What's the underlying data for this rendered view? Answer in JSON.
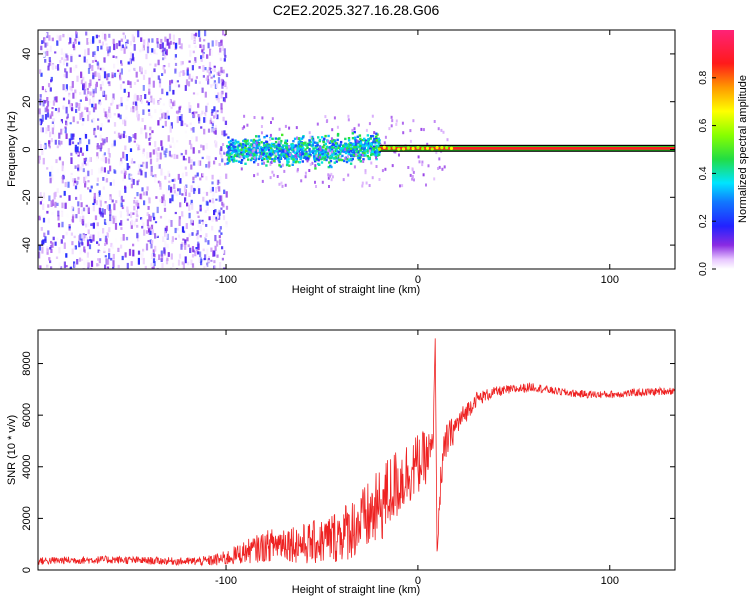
{
  "title": "C2E2.2025.327.16.28.G06",
  "colors": {
    "snr_line": "#ee2222",
    "axis": "#000000",
    "track_red": "#ff2020",
    "track_green": "#22cc22"
  },
  "chart_data": [
    {
      "type": "heatmap",
      "name": "spectrogram",
      "xlabel": "Height of straight line (km)",
      "ylabel": "Frequency (Hz)",
      "xlim": [
        -198,
        134
      ],
      "ylim": [
        -50,
        50
      ],
      "xticks": [
        -100,
        0,
        100
      ],
      "xtick_labels": [
        "-100",
        "0",
        "100"
      ],
      "yticks": [
        -40,
        -20,
        0,
        20,
        40
      ],
      "ytick_labels": [
        "-40",
        "-20",
        "0",
        "20",
        "40"
      ],
      "grid": false,
      "colorbar": {
        "label": "Normalized spectral amplitude",
        "range": [
          0,
          1
        ],
        "ticks": [
          0.0,
          0.2,
          0.4,
          0.6,
          0.8
        ],
        "tick_labels": [
          "0.0",
          "0.2",
          "0.4",
          "0.6",
          "0.8"
        ],
        "colormap": "rainbow (purple-blue-cyan-green-yellow-red-magenta)"
      },
      "regions": [
        {
          "description": "diffuse noise",
          "x_range": [
            -198,
            -100
          ],
          "f_range": [
            -50,
            50
          ],
          "amplitude": [
            0.0,
            0.2
          ]
        },
        {
          "description": "broadened signal",
          "x_range": [
            -100,
            -20
          ],
          "f_range": [
            -8,
            8
          ],
          "amplitude": [
            0.2,
            0.5
          ]
        },
        {
          "description": "narrow carrier line",
          "x_range": [
            -20,
            134
          ],
          "f_center": 0.5,
          "amplitude": 1.0
        }
      ]
    },
    {
      "type": "line",
      "name": "snr",
      "xlabel": "Height of straight line (km)",
      "ylabel": "SNR (10 * v/v)",
      "xlim": [
        -198,
        134
      ],
      "ylim": [
        0,
        9300
      ],
      "xticks": [
        -100,
        0,
        100
      ],
      "xtick_labels": [
        "-100",
        "0",
        "100"
      ],
      "yticks": [
        0,
        2000,
        4000,
        6000,
        8000
      ],
      "ytick_labels": [
        "0",
        "2000",
        "4000",
        "6000",
        "8000"
      ],
      "grid": false,
      "series": [
        {
          "name": "SNR",
          "x": [
            -198,
            -180,
            -160,
            -140,
            -120,
            -110,
            -100,
            -90,
            -80,
            -70,
            -60,
            -50,
            -40,
            -30,
            -20,
            -15,
            -10,
            -5,
            0,
            5,
            8,
            9,
            10,
            12,
            15,
            20,
            25,
            30,
            40,
            50,
            60,
            70,
            80,
            90,
            100,
            110,
            120,
            134
          ],
          "y": [
            350,
            380,
            400,
            360,
            330,
            350,
            450,
            700,
            900,
            1100,
            1000,
            1100,
            1400,
            1800,
            2400,
            3000,
            3400,
            3800,
            4100,
            4400,
            4700,
            9200,
            500,
            3800,
            5000,
            5600,
            6100,
            6600,
            6900,
            7000,
            7100,
            6950,
            6850,
            6800,
            6800,
            6850,
            6900,
            6950
          ],
          "amplitude": [
            150,
            150,
            150,
            150,
            150,
            200,
            300,
            450,
            600,
            700,
            800,
            900,
            1100,
            1300,
            1500,
            1500,
            1400,
            1300,
            1200,
            1000,
            800,
            0,
            0,
            900,
            700,
            500,
            400,
            300,
            200,
            180,
            180,
            150,
            150,
            150,
            150,
            150,
            150,
            150
          ]
        }
      ]
    }
  ]
}
